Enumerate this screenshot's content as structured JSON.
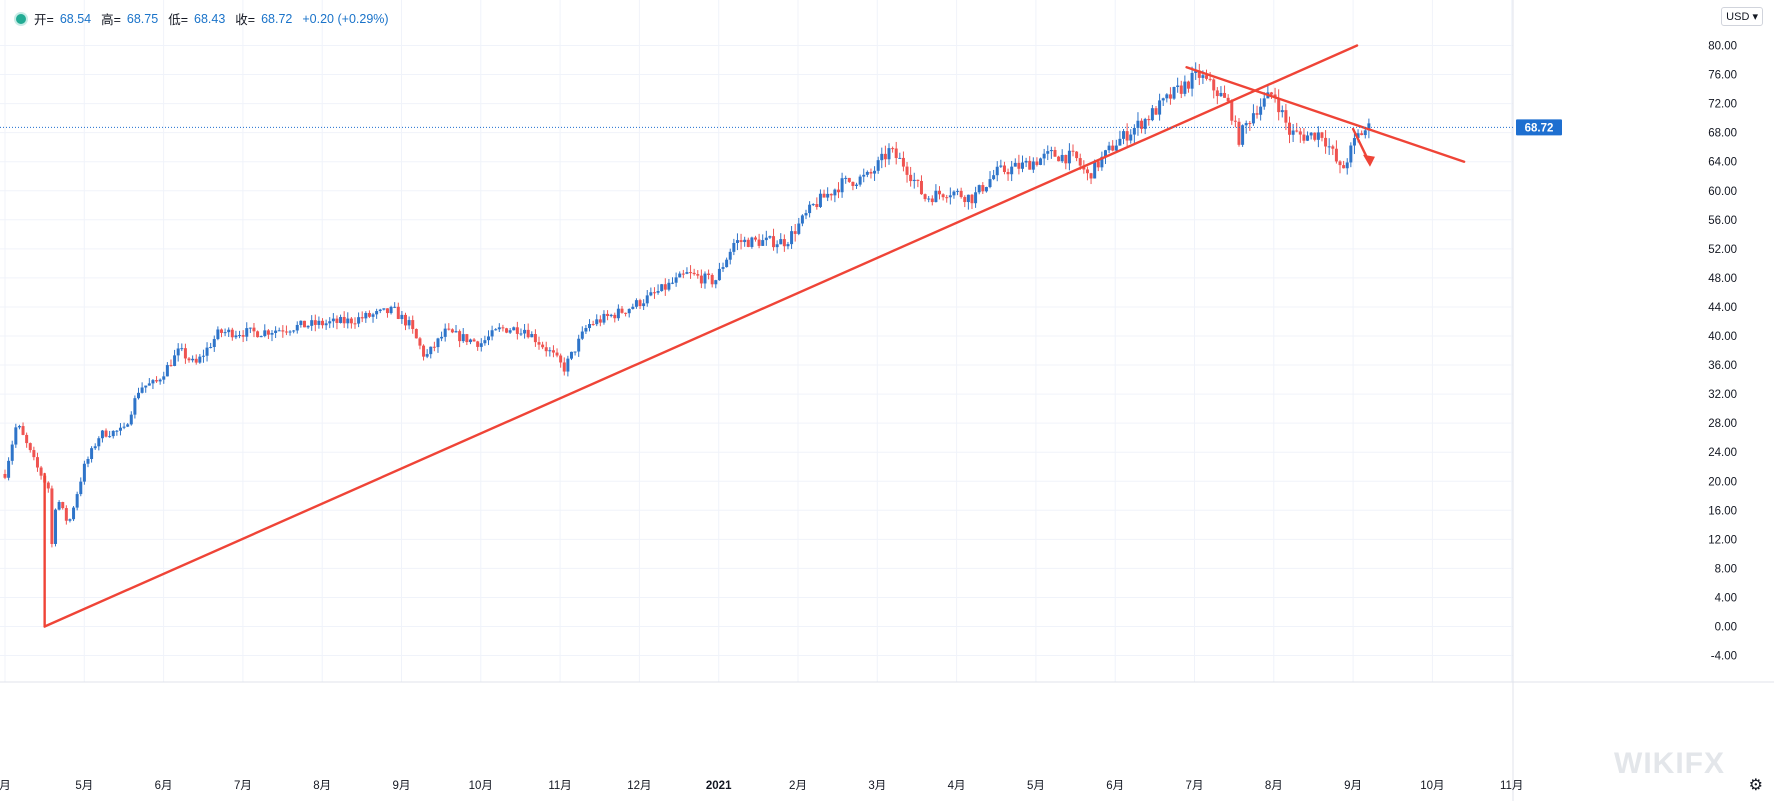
{
  "legend": {
    "open_label": "开=",
    "open_value": "68.54",
    "high_label": "高=",
    "high_value": "68.75",
    "low_label": "低=",
    "low_value": "68.43",
    "close_label": "收=",
    "close_value": "68.72",
    "change": "+0.20 (+0.29%)"
  },
  "currency": "USD",
  "watermark": "WIKIFX",
  "colors": {
    "up": "#2e74c9",
    "down": "#ef5350",
    "trendline": "#ef4437",
    "price_tag": "#1e6fd0",
    "grid": "#f0f3fa"
  },
  "chart_data": {
    "type": "candlestick",
    "last_price": 68.72,
    "ylim": [
      -6.5,
      83.5
    ],
    "y_ticks": [
      "80.00",
      "76.00",
      "72.00",
      "68.00",
      "64.00",
      "60.00",
      "56.00",
      "52.00",
      "48.00",
      "44.00",
      "40.00",
      "36.00",
      "32.00",
      "28.00",
      "24.00",
      "20.00",
      "16.00",
      "12.00",
      "8.00",
      "4.00",
      "0.00",
      "-4.00"
    ],
    "x_ticks": [
      "月",
      "5月",
      "6月",
      "7月",
      "8月",
      "9月",
      "10月",
      "11月",
      "12月",
      "2021",
      "2月",
      "3月",
      "4月",
      "5月",
      "6月",
      "7月",
      "8月",
      "9月",
      "10月",
      "11月"
    ],
    "price_path": [
      {
        "month": 0.0,
        "price": 21.0
      },
      {
        "month": 0.15,
        "price": 28.0
      },
      {
        "month": 0.4,
        "price": 22.0
      },
      {
        "month": 0.55,
        "price": 19.0
      },
      {
        "month": 0.58,
        "price": 10.0
      },
      {
        "month": 0.65,
        "price": 18.0
      },
      {
        "month": 0.8,
        "price": 14.0
      },
      {
        "month": 1.0,
        "price": 22.0
      },
      {
        "month": 1.2,
        "price": 26.5
      },
      {
        "month": 1.5,
        "price": 27.0
      },
      {
        "month": 1.7,
        "price": 33.0
      },
      {
        "month": 1.9,
        "price": 33.5
      },
      {
        "month": 2.2,
        "price": 38.0
      },
      {
        "month": 2.4,
        "price": 36.0
      },
      {
        "month": 2.7,
        "price": 40.5
      },
      {
        "month": 3.2,
        "price": 40.5
      },
      {
        "month": 3.8,
        "price": 41.5
      },
      {
        "month": 4.3,
        "price": 42.0
      },
      {
        "month": 4.9,
        "price": 43.5
      },
      {
        "month": 5.1,
        "price": 41.5
      },
      {
        "month": 5.3,
        "price": 37.0
      },
      {
        "month": 5.55,
        "price": 40.5
      },
      {
        "month": 6.0,
        "price": 39.0
      },
      {
        "month": 6.25,
        "price": 41.0
      },
      {
        "month": 6.55,
        "price": 41.0
      },
      {
        "month": 6.9,
        "price": 37.5
      },
      {
        "month": 7.05,
        "price": 35.5
      },
      {
        "month": 7.35,
        "price": 41.5
      },
      {
        "month": 7.8,
        "price": 43.5
      },
      {
        "month": 8.15,
        "price": 45.5
      },
      {
        "month": 8.6,
        "price": 48.5
      },
      {
        "month": 8.95,
        "price": 47.5
      },
      {
        "month": 9.2,
        "price": 53.0
      },
      {
        "month": 9.55,
        "price": 53.0
      },
      {
        "month": 9.85,
        "price": 53.0
      },
      {
        "month": 10.2,
        "price": 58.0
      },
      {
        "month": 10.55,
        "price": 61.0
      },
      {
        "month": 10.9,
        "price": 62.0
      },
      {
        "month": 11.15,
        "price": 65.5
      },
      {
        "month": 11.35,
        "price": 63.5
      },
      {
        "month": 11.6,
        "price": 59.0
      },
      {
        "month": 11.9,
        "price": 60.0
      },
      {
        "month": 12.2,
        "price": 59.0
      },
      {
        "month": 12.5,
        "price": 62.5
      },
      {
        "month": 12.85,
        "price": 63.5
      },
      {
        "month": 13.2,
        "price": 65.0
      },
      {
        "month": 13.5,
        "price": 64.5
      },
      {
        "month": 13.65,
        "price": 62.0
      },
      {
        "month": 14.0,
        "price": 66.5
      },
      {
        "month": 14.4,
        "price": 70.0
      },
      {
        "month": 14.7,
        "price": 73.0
      },
      {
        "month": 15.05,
        "price": 76.0
      },
      {
        "month": 15.3,
        "price": 73.5
      },
      {
        "month": 15.45,
        "price": 71.5
      },
      {
        "month": 15.55,
        "price": 67.0
      },
      {
        "month": 15.75,
        "price": 71.0
      },
      {
        "month": 16.0,
        "price": 73.5
      },
      {
        "month": 16.2,
        "price": 68.0
      },
      {
        "month": 16.4,
        "price": 67.5
      },
      {
        "month": 16.6,
        "price": 68.0
      },
      {
        "month": 16.75,
        "price": 65.0
      },
      {
        "month": 16.85,
        "price": 62.5
      },
      {
        "month": 17.05,
        "price": 67.5
      },
      {
        "month": 17.2,
        "price": 68.7
      }
    ],
    "trendlines": [
      {
        "from": {
          "month": 0.5,
          "price": 0.0
        },
        "to": {
          "month": 0.5,
          "price": 21.0
        }
      },
      {
        "from": {
          "month": 0.5,
          "price": 0.0
        },
        "to": {
          "month": 17.05,
          "price": 80.0
        }
      },
      {
        "from": {
          "month": 14.9,
          "price": 77.0
        },
        "to": {
          "month": 18.4,
          "price": 64.0
        }
      },
      {
        "from": {
          "month": 17.0,
          "price": 68.5
        },
        "to": {
          "month": 17.2,
          "price": 64.0
        }
      }
    ]
  }
}
